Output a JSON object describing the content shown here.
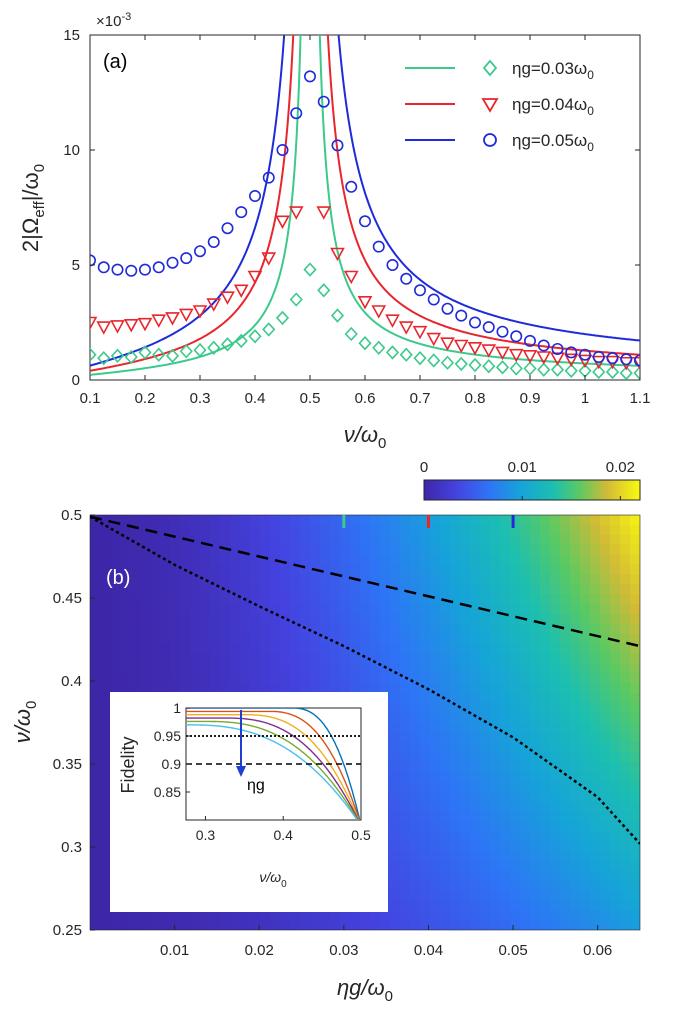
{
  "chart_data": [
    {
      "panel_label": "(a)",
      "type": "line+scatter",
      "xlabel": "ν/ω",
      "xlabel_sub": "0",
      "ylabel": "2|Ω",
      "ylabel_sub": "eff",
      "ylabel_tail": "|/ω",
      "ylabel_tail_sub": "0",
      "y_multiplier": "×10",
      "y_multiplier_exp": "-3",
      "xlim": [
        0.1,
        1.1
      ],
      "ylim": [
        0,
        15
      ],
      "xticks": [
        "0.1",
        "0.2",
        "0.3",
        "0.4",
        "0.5",
        "0.6",
        "0.7",
        "0.8",
        "0.9",
        "1",
        "1.1"
      ],
      "yticks": [
        "0",
        "5",
        "10",
        "15"
      ],
      "xtick_values": [
        0.1,
        0.2,
        0.3,
        0.4,
        0.5,
        0.6,
        0.7,
        0.8,
        0.9,
        1.0,
        1.1
      ],
      "ytick_values": [
        0,
        5,
        10,
        15
      ],
      "legend_position": "top-right",
      "series": [
        {
          "name": "ηg=0.03ω",
          "name_sub": "0",
          "eta_g": 0.03,
          "color": "#3cc98c",
          "marker": "diamond",
          "markers": {
            "x": [
              0.1,
              0.125,
              0.15,
              0.175,
              0.2,
              0.225,
              0.25,
              0.275,
              0.3,
              0.325,
              0.35,
              0.375,
              0.4,
              0.425,
              0.45,
              0.475,
              0.5,
              0.525,
              0.55,
              0.575,
              0.6,
              0.625,
              0.65,
              0.675,
              0.7,
              0.725,
              0.75,
              0.775,
              0.8,
              0.825,
              0.85,
              0.875,
              0.9,
              0.925,
              0.95,
              0.975,
              1.0,
              1.025,
              1.05,
              1.075,
              1.1
            ],
            "y": [
              1.1,
              0.95,
              1.05,
              1.0,
              1.2,
              1.1,
              1.05,
              1.25,
              1.3,
              1.4,
              1.55,
              1.7,
              1.9,
              2.2,
              2.7,
              3.5,
              4.8,
              3.9,
              2.8,
              2.0,
              1.6,
              1.4,
              1.2,
              1.1,
              0.95,
              0.85,
              0.75,
              0.7,
              0.65,
              0.6,
              0.55,
              0.5,
              0.5,
              0.45,
              0.45,
              0.4,
              0.4,
              0.35,
              0.35,
              0.3,
              0.3
            ]
          },
          "curve_label": "theory"
        },
        {
          "name": "ηg=0.04ω",
          "name_sub": "0",
          "eta_g": 0.04,
          "color": "#e8262b",
          "marker": "triangle-down",
          "markers": {
            "x": [
              0.1,
              0.125,
              0.15,
              0.175,
              0.2,
              0.225,
              0.25,
              0.275,
              0.3,
              0.325,
              0.35,
              0.375,
              0.4,
              0.425,
              0.45,
              0.475,
              0.525,
              0.55,
              0.575,
              0.6,
              0.625,
              0.65,
              0.675,
              0.7,
              0.725,
              0.75,
              0.775,
              0.8,
              0.825,
              0.85,
              0.875,
              0.9,
              0.925,
              0.95,
              0.975,
              1.0,
              1.025,
              1.05,
              1.075,
              1.1
            ],
            "y": [
              2.5,
              2.3,
              2.35,
              2.4,
              2.45,
              2.6,
              2.7,
              2.85,
              3.0,
              3.3,
              3.6,
              3.9,
              4.5,
              5.3,
              6.9,
              7.3,
              7.3,
              5.5,
              4.5,
              3.4,
              3.0,
              2.6,
              2.3,
              2.1,
              1.8,
              1.6,
              1.5,
              1.4,
              1.3,
              1.2,
              1.1,
              1.05,
              1.0,
              0.95,
              0.9,
              0.85,
              0.8,
              0.8,
              0.75,
              0.75
            ]
          }
        },
        {
          "name": "ηg=0.05ω",
          "name_sub": "0",
          "eta_g": 0.05,
          "color": "#1f2bd9",
          "marker": "circle",
          "markers": {
            "x": [
              0.1,
              0.125,
              0.15,
              0.175,
              0.2,
              0.225,
              0.25,
              0.275,
              0.3,
              0.325,
              0.35,
              0.375,
              0.4,
              0.425,
              0.45,
              0.475,
              0.5,
              0.525,
              0.55,
              0.575,
              0.6,
              0.625,
              0.65,
              0.675,
              0.7,
              0.725,
              0.75,
              0.775,
              0.8,
              0.825,
              0.85,
              0.875,
              0.9,
              0.925,
              0.95,
              0.975,
              1.0,
              1.025,
              1.05,
              1.075,
              1.1
            ],
            "y": [
              5.2,
              4.9,
              4.8,
              4.75,
              4.8,
              4.9,
              5.1,
              5.3,
              5.6,
              6.0,
              6.6,
              7.3,
              8.0,
              8.8,
              10.0,
              11.6,
              13.2,
              12.1,
              10.2,
              8.4,
              6.9,
              5.8,
              5.0,
              4.4,
              3.9,
              3.5,
              3.1,
              2.8,
              2.5,
              2.3,
              2.1,
              1.9,
              1.7,
              1.5,
              1.35,
              1.2,
              1.1,
              1.0,
              0.95,
              0.9,
              0.85
            ]
          }
        }
      ]
    },
    {
      "panel_label": "(b)",
      "type": "heatmap",
      "xlabel": "ηg/ω",
      "xlabel_sub": "0",
      "ylabel": "ν/ω",
      "ylabel_sub": "0",
      "xlim": [
        0.0,
        0.065
      ],
      "ylim": [
        0.25,
        0.5
      ],
      "xticks": [
        "0.01",
        "0.02",
        "0.03",
        "0.04",
        "0.05",
        "0.06"
      ],
      "xtick_values": [
        0.01,
        0.02,
        0.03,
        0.04,
        0.05,
        0.06
      ],
      "yticks": [
        "0.25",
        "0.3",
        "0.35",
        "0.4",
        "0.45",
        "0.5"
      ],
      "ytick_values": [
        0.25,
        0.3,
        0.35,
        0.4,
        0.45,
        0.5
      ],
      "colorbar": {
        "ticks": [
          "0",
          "0.01",
          "0.02"
        ],
        "tick_values": [
          0,
          0.01,
          0.02
        ],
        "range": [
          0,
          0.022
        ],
        "colormap": "parula"
      },
      "boundary_dashed": {
        "label": "Fidelity 0.9 contour",
        "x": [
          0.0,
          0.065
        ],
        "y": [
          0.499,
          0.421
        ]
      },
      "boundary_dotted": {
        "label": "Fidelity 0.95 contour",
        "x": [
          0.0,
          0.01,
          0.02,
          0.03,
          0.04,
          0.05,
          0.06,
          0.065
        ],
        "y": [
          0.499,
          0.47,
          0.445,
          0.421,
          0.395,
          0.366,
          0.33,
          0.302
        ]
      },
      "top_markers": [
        {
          "x": 0.03,
          "color": "#3cc98c"
        },
        {
          "x": 0.04,
          "color": "#e8262b"
        },
        {
          "x": 0.05,
          "color": "#1f2bd9"
        }
      ],
      "inset": {
        "type": "line",
        "ylabel": "Fidelity",
        "xlabel": "ν/ω",
        "xlabel_sub": "0",
        "xlim": [
          0.275,
          0.5
        ],
        "ylim": [
          0.8,
          1.0
        ],
        "xticks": [
          "0.3",
          "0.4",
          "0.5"
        ],
        "xtick_values": [
          0.3,
          0.4,
          0.5
        ],
        "yticks": [
          "0.85",
          "0.9",
          "0.95",
          "1"
        ],
        "ytick_values": [
          0.85,
          0.9,
          0.95,
          1.0
        ],
        "ref_lines": [
          {
            "y": 0.95,
            "style": "dotted"
          },
          {
            "y": 0.9,
            "style": "dashed"
          }
        ],
        "arrow_label": "ηg",
        "curve_colors": [
          "#0072bd",
          "#d95319",
          "#edb120",
          "#7e2f8e",
          "#77ac30",
          "#4dbeee"
        ],
        "curve_onsets": [
          0.47,
          0.44,
          0.41,
          0.385,
          0.36,
          0.335
        ]
      }
    }
  ]
}
